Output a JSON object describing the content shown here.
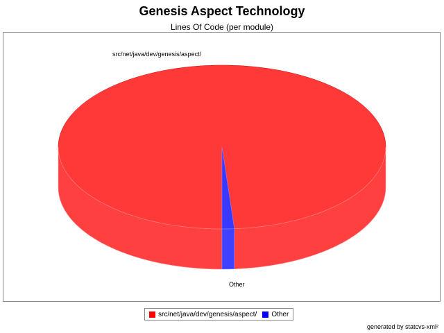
{
  "chart_data": {
    "type": "pie",
    "title": "Genesis Aspect Technology",
    "subtitle": "Lines Of Code (per module)",
    "slices": [
      {
        "label": "src/net/java/dev/genesis/aspect/",
        "value": 98.8,
        "color": "#ff0000"
      },
      {
        "label": "Other",
        "value": 1.2,
        "color": "#0000ff"
      }
    ],
    "legend": {
      "placement": "bottom",
      "entries": [
        "src/net/java/dev/genesis/aspect/",
        "Other"
      ]
    }
  },
  "footer": "generated by statcvs-xml²"
}
